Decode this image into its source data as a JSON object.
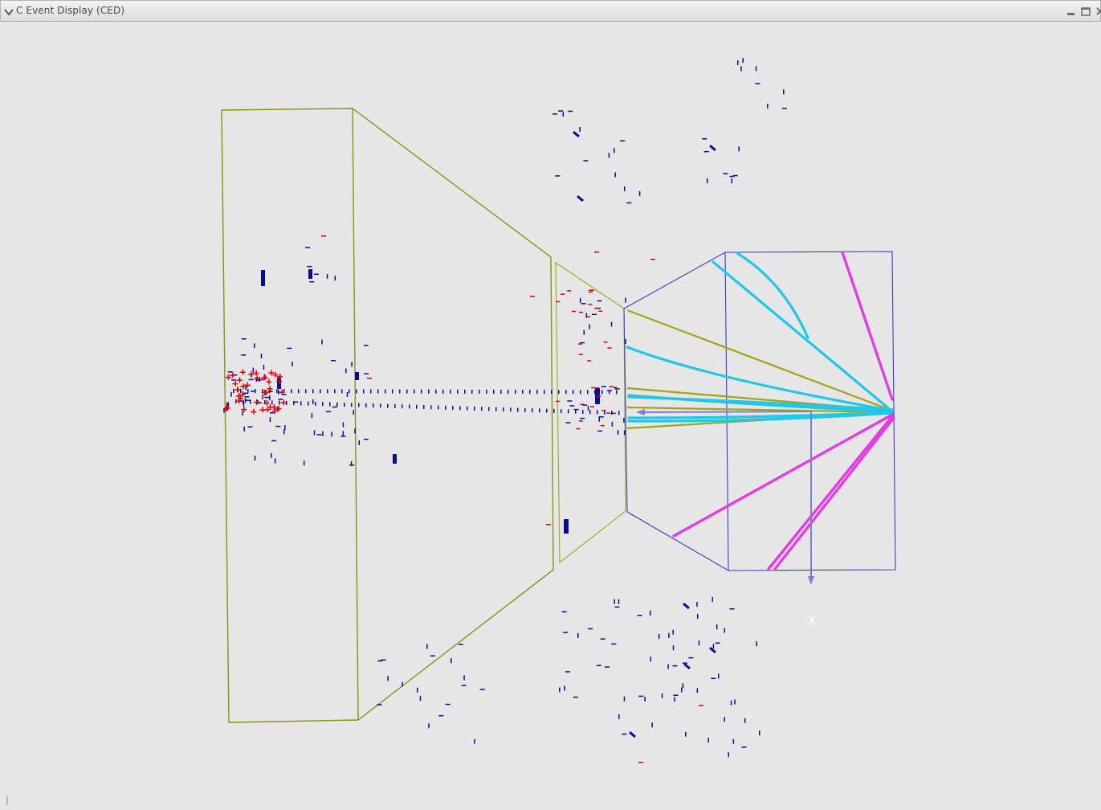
{
  "window": {
    "title": "C Event Display (CED)",
    "menu_icon": "chevron-down-icon",
    "controls": [
      "minimize-icon",
      "maximize-icon",
      "close-icon"
    ]
  },
  "viewport": {
    "axis_label": "X",
    "colors": {
      "background": "#e6e6e6",
      "detector_outline_olive": "#8f8f16",
      "detector_outline_olive_inner": "#a8a82a",
      "detector_outline_blue": "#3a3ac8",
      "track_cyan": "#1ec8e6",
      "track_olive": "#a3a318",
      "track_magenta": "#e23ce2",
      "hit_blue": "#0a0a9a",
      "hit_red": "#e00000",
      "axis": "#7d7dd6"
    }
  }
}
